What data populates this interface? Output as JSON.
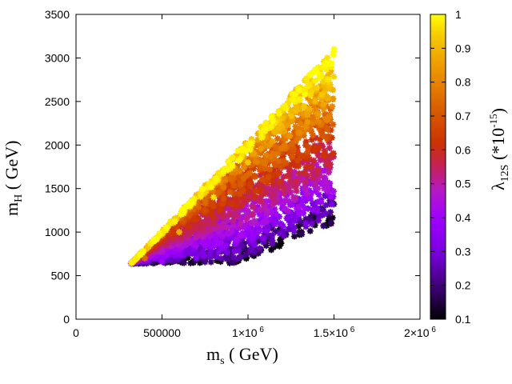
{
  "chart_data": {
    "type": "scatter",
    "title": "",
    "xlabel_main": "m",
    "xlabel_sub": "s",
    "xlabel_unit": "( GeV)",
    "ylabel_main": "m",
    "ylabel_sub": "H",
    "ylabel_unit": "( GeV)",
    "xlim": [
      0,
      2000000
    ],
    "ylim": [
      0,
      3500
    ],
    "x_ticks": [
      {
        "value": 0,
        "base": "0",
        "exp": ""
      },
      {
        "value": 500000,
        "base": "500000",
        "exp": ""
      },
      {
        "value": 1000000,
        "base": "1×10",
        "exp": "6"
      },
      {
        "value": 1500000,
        "base": "1.5×10",
        "exp": "6"
      },
      {
        "value": 2000000,
        "base": "2×10",
        "exp": "6"
      }
    ],
    "y_ticks": [
      0,
      500,
      1000,
      1500,
      2000,
      2500,
      3000,
      3500
    ],
    "colorbar": {
      "label_main": "λ",
      "label_sub": "12S",
      "label_unit": "(*10",
      "label_exp": "-15",
      "label_close": ")",
      "range": [
        0.1,
        1.0
      ],
      "ticks": [
        "1",
        "0.9",
        "0.8",
        "0.7",
        "0.6",
        "0.5",
        "0.4",
        "0.3",
        "0.2",
        "0.1"
      ],
      "palette": [
        "#000000",
        "#3a0070",
        "#7a00e0",
        "#a000ff",
        "#b418c8",
        "#c4205a",
        "#cc3300",
        "#d85a00",
        "#e68000",
        "#f0a800",
        "#f8d000",
        "#ffff00"
      ]
    },
    "point_marker": "star",
    "region": {
      "m_s_min": 320000,
      "m_s_max": 1500000,
      "m_H_min": 640,
      "m_H_max": 3100,
      "description_lower_edge_mH_at_max_ms": 1100
    },
    "series": [
      {
        "name": "points",
        "sample_points": [
          {
            "m_s": 330000,
            "m_H": 660,
            "lambda": 0.85
          },
          {
            "m_s": 400000,
            "m_H": 700,
            "lambda": 0.7
          },
          {
            "m_s": 500000,
            "m_H": 660,
            "lambda": 0.35
          },
          {
            "m_s": 600000,
            "m_H": 1000,
            "lambda": 0.85
          },
          {
            "m_s": 700000,
            "m_H": 700,
            "lambda": 0.3
          },
          {
            "m_s": 800000,
            "m_H": 1400,
            "lambda": 0.95
          },
          {
            "m_s": 900000,
            "m_H": 800,
            "lambda": 0.2
          },
          {
            "m_s": 1000000,
            "m_H": 1800,
            "lambda": 0.9
          },
          {
            "m_s": 1100000,
            "m_H": 1200,
            "lambda": 0.35
          },
          {
            "m_s": 1200000,
            "m_H": 2200,
            "lambda": 0.85
          },
          {
            "m_s": 1300000,
            "m_H": 1000,
            "lambda": 0.12
          },
          {
            "m_s": 1400000,
            "m_H": 2600,
            "lambda": 0.8
          },
          {
            "m_s": 1500000,
            "m_H": 3100,
            "lambda": 1.0
          },
          {
            "m_s": 1480000,
            "m_H": 1100,
            "lambda": 0.1
          }
        ]
      }
    ]
  }
}
